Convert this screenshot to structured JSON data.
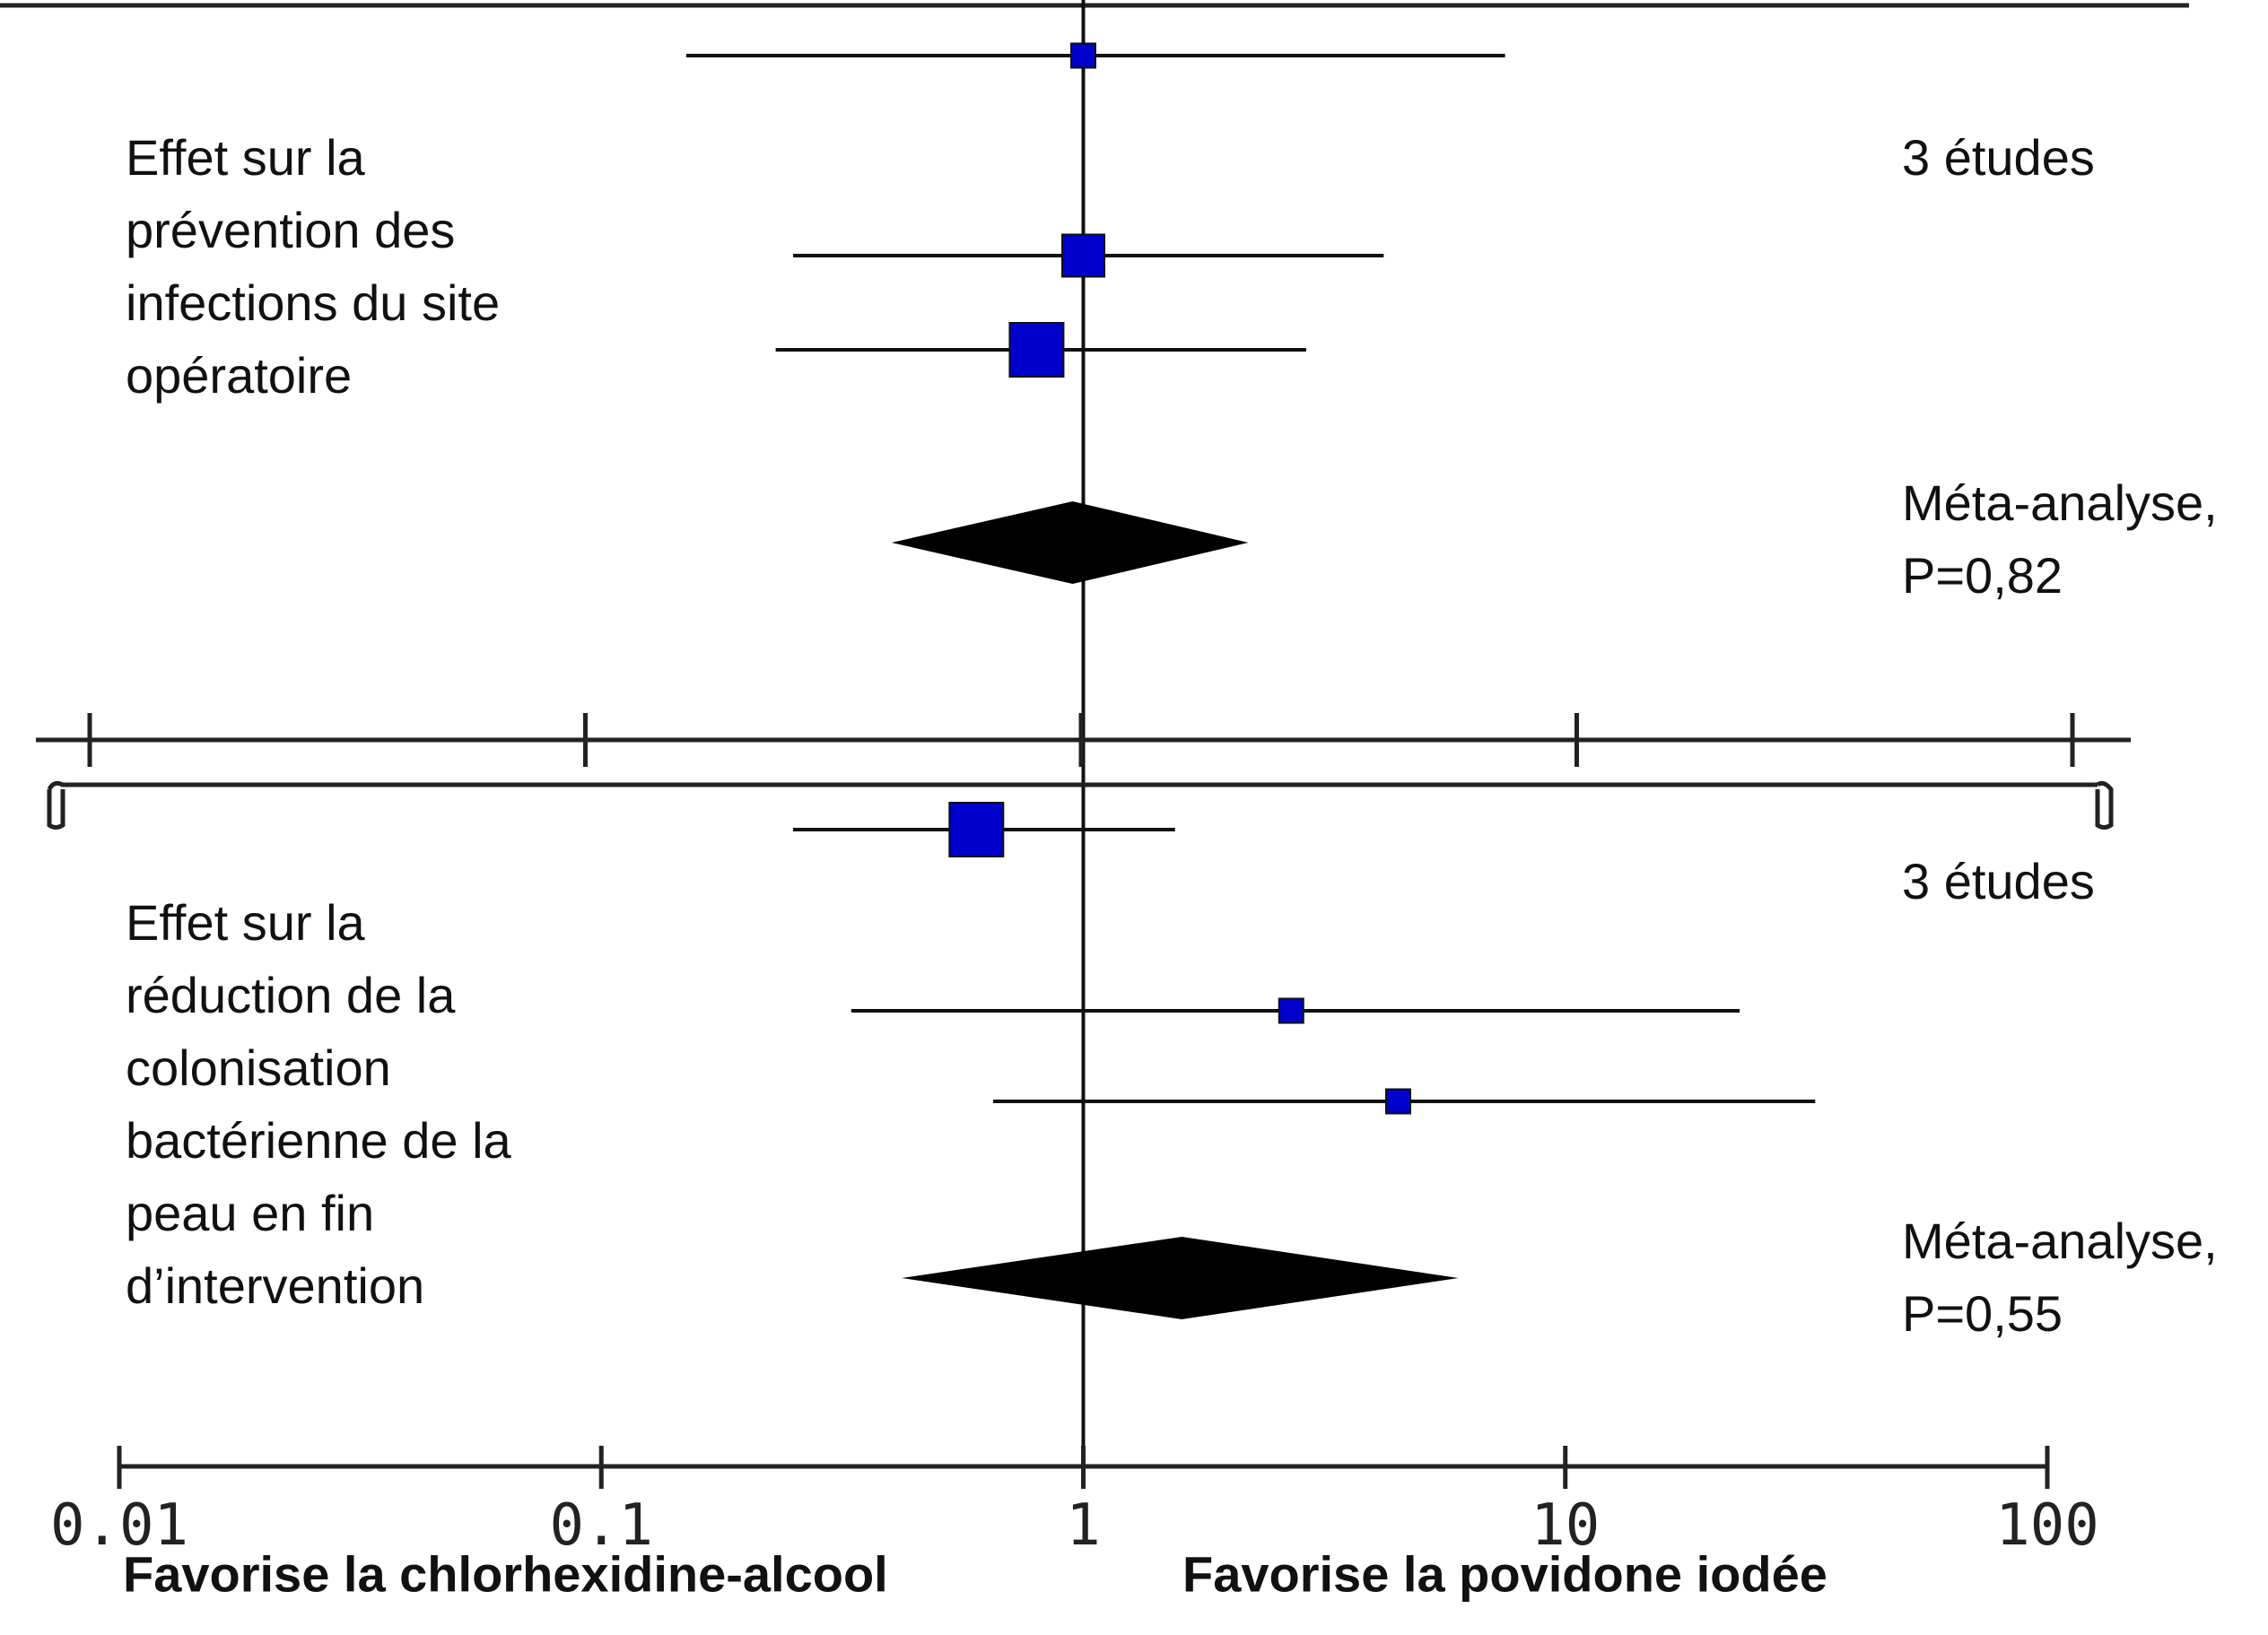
{
  "chart_data": {
    "type": "forest",
    "x_scale": "log",
    "xlim": [
      0.01,
      100
    ],
    "x_ticks": [
      "0.01",
      "0.1",
      "1",
      "10",
      "100"
    ],
    "x_tick_values": [
      0.01,
      0.1,
      1,
      10,
      100
    ],
    "reference_line": 1,
    "favours_left": "Favorise la chlorhexidine-alcool",
    "favours_right": "Favorise la povidone iodée",
    "point_color": "#0000cc",
    "diamond_color": "#000000",
    "panels": [
      {
        "label_lines": [
          "Effet sur la",
          "prévention des",
          "infections du site",
          "opératoire"
        ],
        "studies_label": "3 études",
        "meta_label_lines": [
          "Méta-analyse,",
          "P=0,82"
        ],
        "studies": [
          {
            "estimate": 1.0,
            "ci_low": 0.15,
            "ci_high": 7.5,
            "weight": 1
          },
          {
            "estimate": 1.0,
            "ci_low": 0.25,
            "ci_high": 4.2,
            "weight": 2
          },
          {
            "estimate": 0.8,
            "ci_low": 0.23,
            "ci_high": 2.9,
            "weight": 3
          }
        ],
        "meta": {
          "estimate": 0.95,
          "ci_low": 0.4,
          "ci_high": 2.2
        }
      },
      {
        "label_lines": [
          "Effet sur la",
          "réduction de la",
          "colonisation",
          "bactérienne de la",
          "peau en fin",
          "d’intervention"
        ],
        "studies_label": "3 études",
        "meta_label_lines": [
          "Méta-analyse,",
          "P=0,55"
        ],
        "studies": [
          {
            "estimate": 0.6,
            "ci_low": 0.25,
            "ci_high": 1.55,
            "weight": 3
          },
          {
            "estimate": 2.7,
            "ci_low": 0.33,
            "ci_high": 23,
            "weight": 1
          },
          {
            "estimate": 4.5,
            "ci_low": 0.65,
            "ci_high": 33,
            "weight": 1
          }
        ],
        "meta": {
          "estimate": 1.6,
          "ci_low": 0.42,
          "ci_high": 6.0
        }
      }
    ]
  }
}
